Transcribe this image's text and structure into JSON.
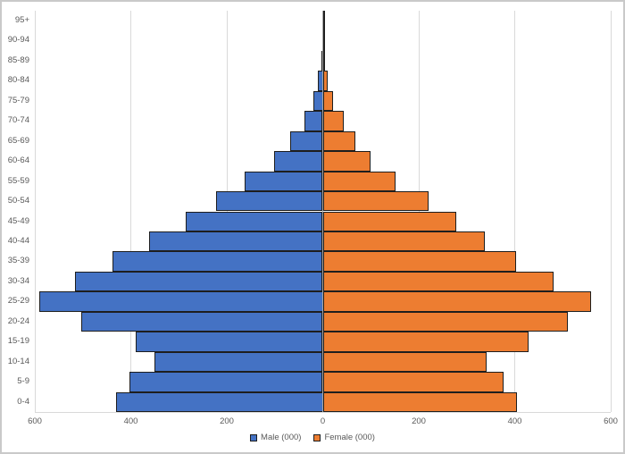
{
  "chart_data": {
    "type": "bar",
    "subtype": "population-pyramid",
    "title": "",
    "xlabel": "",
    "ylabel": "",
    "grid": true,
    "legend_position": "bottom",
    "categories": [
      "95+",
      "90-94",
      "85-89",
      "80-84",
      "75-79",
      "70-74",
      "65-69",
      "60-64",
      "55-59",
      "50-54",
      "45-49",
      "40-44",
      "35-39",
      "30-34",
      "25-29",
      "20-24",
      "15-19",
      "10-14",
      "5-9",
      "0-4"
    ],
    "series": [
      {
        "name": "Male (000)",
        "side": "left",
        "color": "#4472C4",
        "border_color": "#1e1e1e",
        "values": [
          1,
          1,
          2,
          10,
          20,
          39,
          68,
          101,
          162,
          222,
          286,
          362,
          438,
          517,
          590,
          504,
          389,
          351,
          402,
          430
        ]
      },
      {
        "name": "Female (000)",
        "side": "right",
        "color": "#ED7D31",
        "border_color": "#1e1e1e",
        "values": [
          1,
          2,
          4,
          10,
          22,
          44,
          68,
          100,
          152,
          220,
          279,
          338,
          402,
          480,
          559,
          511,
          429,
          341,
          376,
          405
        ]
      }
    ],
    "x_axis": {
      "min": -600,
      "max": 600,
      "step": 200,
      "tick_labels": [
        "600",
        "400",
        "200",
        "0",
        "200",
        "400",
        "600"
      ]
    }
  },
  "colors": {
    "gridline": "#d9d9d9",
    "center_axis": "#a6a6a6",
    "text": "#595959",
    "background": "#ffffff",
    "frame": "#c9c9c9"
  }
}
